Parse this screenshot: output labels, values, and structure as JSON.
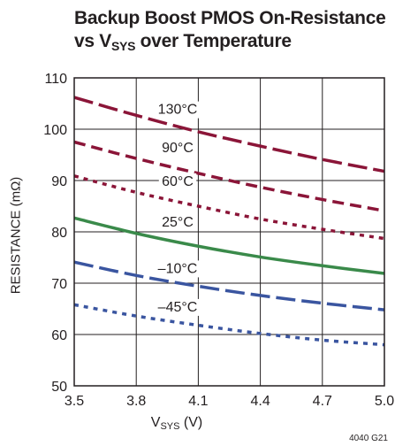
{
  "chart_data": {
    "type": "line",
    "title": {
      "line1": "Backup Boost PMOS On-Resistance",
      "line2_prefix": "vs V",
      "line2_sub": "SYS",
      "line2_suffix": " over Temperature"
    },
    "xlabel": {
      "main": "V",
      "sub": "SYS",
      "suffix": " (V)"
    },
    "ylabel": "RESISTANCE (mΩ)",
    "xlim": [
      3.5,
      5.0
    ],
    "ylim": [
      50,
      110
    ],
    "xticks": [
      3.5,
      3.8,
      4.1,
      4.4,
      4.7,
      5.0
    ],
    "xtick_labels": [
      "3.5",
      "3.8",
      "4.1",
      "4.4",
      "4.7",
      "5.0"
    ],
    "yticks": [
      50,
      60,
      70,
      80,
      90,
      100,
      110
    ],
    "ytick_labels": [
      "50",
      "60",
      "70",
      "80",
      "90",
      "100",
      "110"
    ],
    "grid": true,
    "figure_id": "4040 G21",
    "series": [
      {
        "name": "130°C",
        "color": "#8b1538",
        "dash": "long-dash",
        "label_pos": [
          4.0,
          103.0
        ],
        "x": [
          3.5,
          3.8,
          4.1,
          4.4,
          4.7,
          5.0
        ],
        "y": [
          106.2,
          102.7,
          99.5,
          96.7,
          94.1,
          91.8
        ]
      },
      {
        "name": "90°C",
        "color": "#8b1538",
        "dash": "medium-dash",
        "label_pos": [
          4.0,
          95.5
        ],
        "x": [
          3.5,
          3.8,
          4.1,
          4.4,
          4.7,
          5.0
        ],
        "y": [
          97.5,
          94.3,
          91.4,
          88.7,
          86.3,
          84.1
        ]
      },
      {
        "name": "60°C",
        "color": "#8b1538",
        "dash": "dotted",
        "label_pos": [
          4.0,
          89.0
        ],
        "x": [
          3.5,
          3.8,
          4.1,
          4.4,
          4.7,
          5.0
        ],
        "y": [
          90.9,
          87.7,
          85.0,
          82.5,
          80.5,
          78.7
        ]
      },
      {
        "name": "25°C",
        "color": "#3a8a4a",
        "dash": "solid",
        "label_pos": [
          4.0,
          81.0
        ],
        "x": [
          3.5,
          3.8,
          4.1,
          4.4,
          4.7,
          5.0
        ],
        "y": [
          82.7,
          79.7,
          77.2,
          75.1,
          73.4,
          71.9
        ]
      },
      {
        "name": "–10°C",
        "color": "#3a55a0",
        "dash": "long-dash",
        "label_pos": [
          4.0,
          72.0
        ],
        "x": [
          3.5,
          3.8,
          4.1,
          4.4,
          4.7,
          5.0
        ],
        "y": [
          74.1,
          71.5,
          69.4,
          67.6,
          66.1,
          64.8
        ]
      },
      {
        "name": "–45°C",
        "color": "#3a55a0",
        "dash": "dotted",
        "label_pos": [
          4.0,
          64.5
        ],
        "x": [
          3.5,
          3.8,
          4.1,
          4.4,
          4.7,
          5.0
        ],
        "y": [
          65.8,
          63.6,
          61.8,
          60.2,
          58.9,
          58.0
        ]
      }
    ]
  }
}
